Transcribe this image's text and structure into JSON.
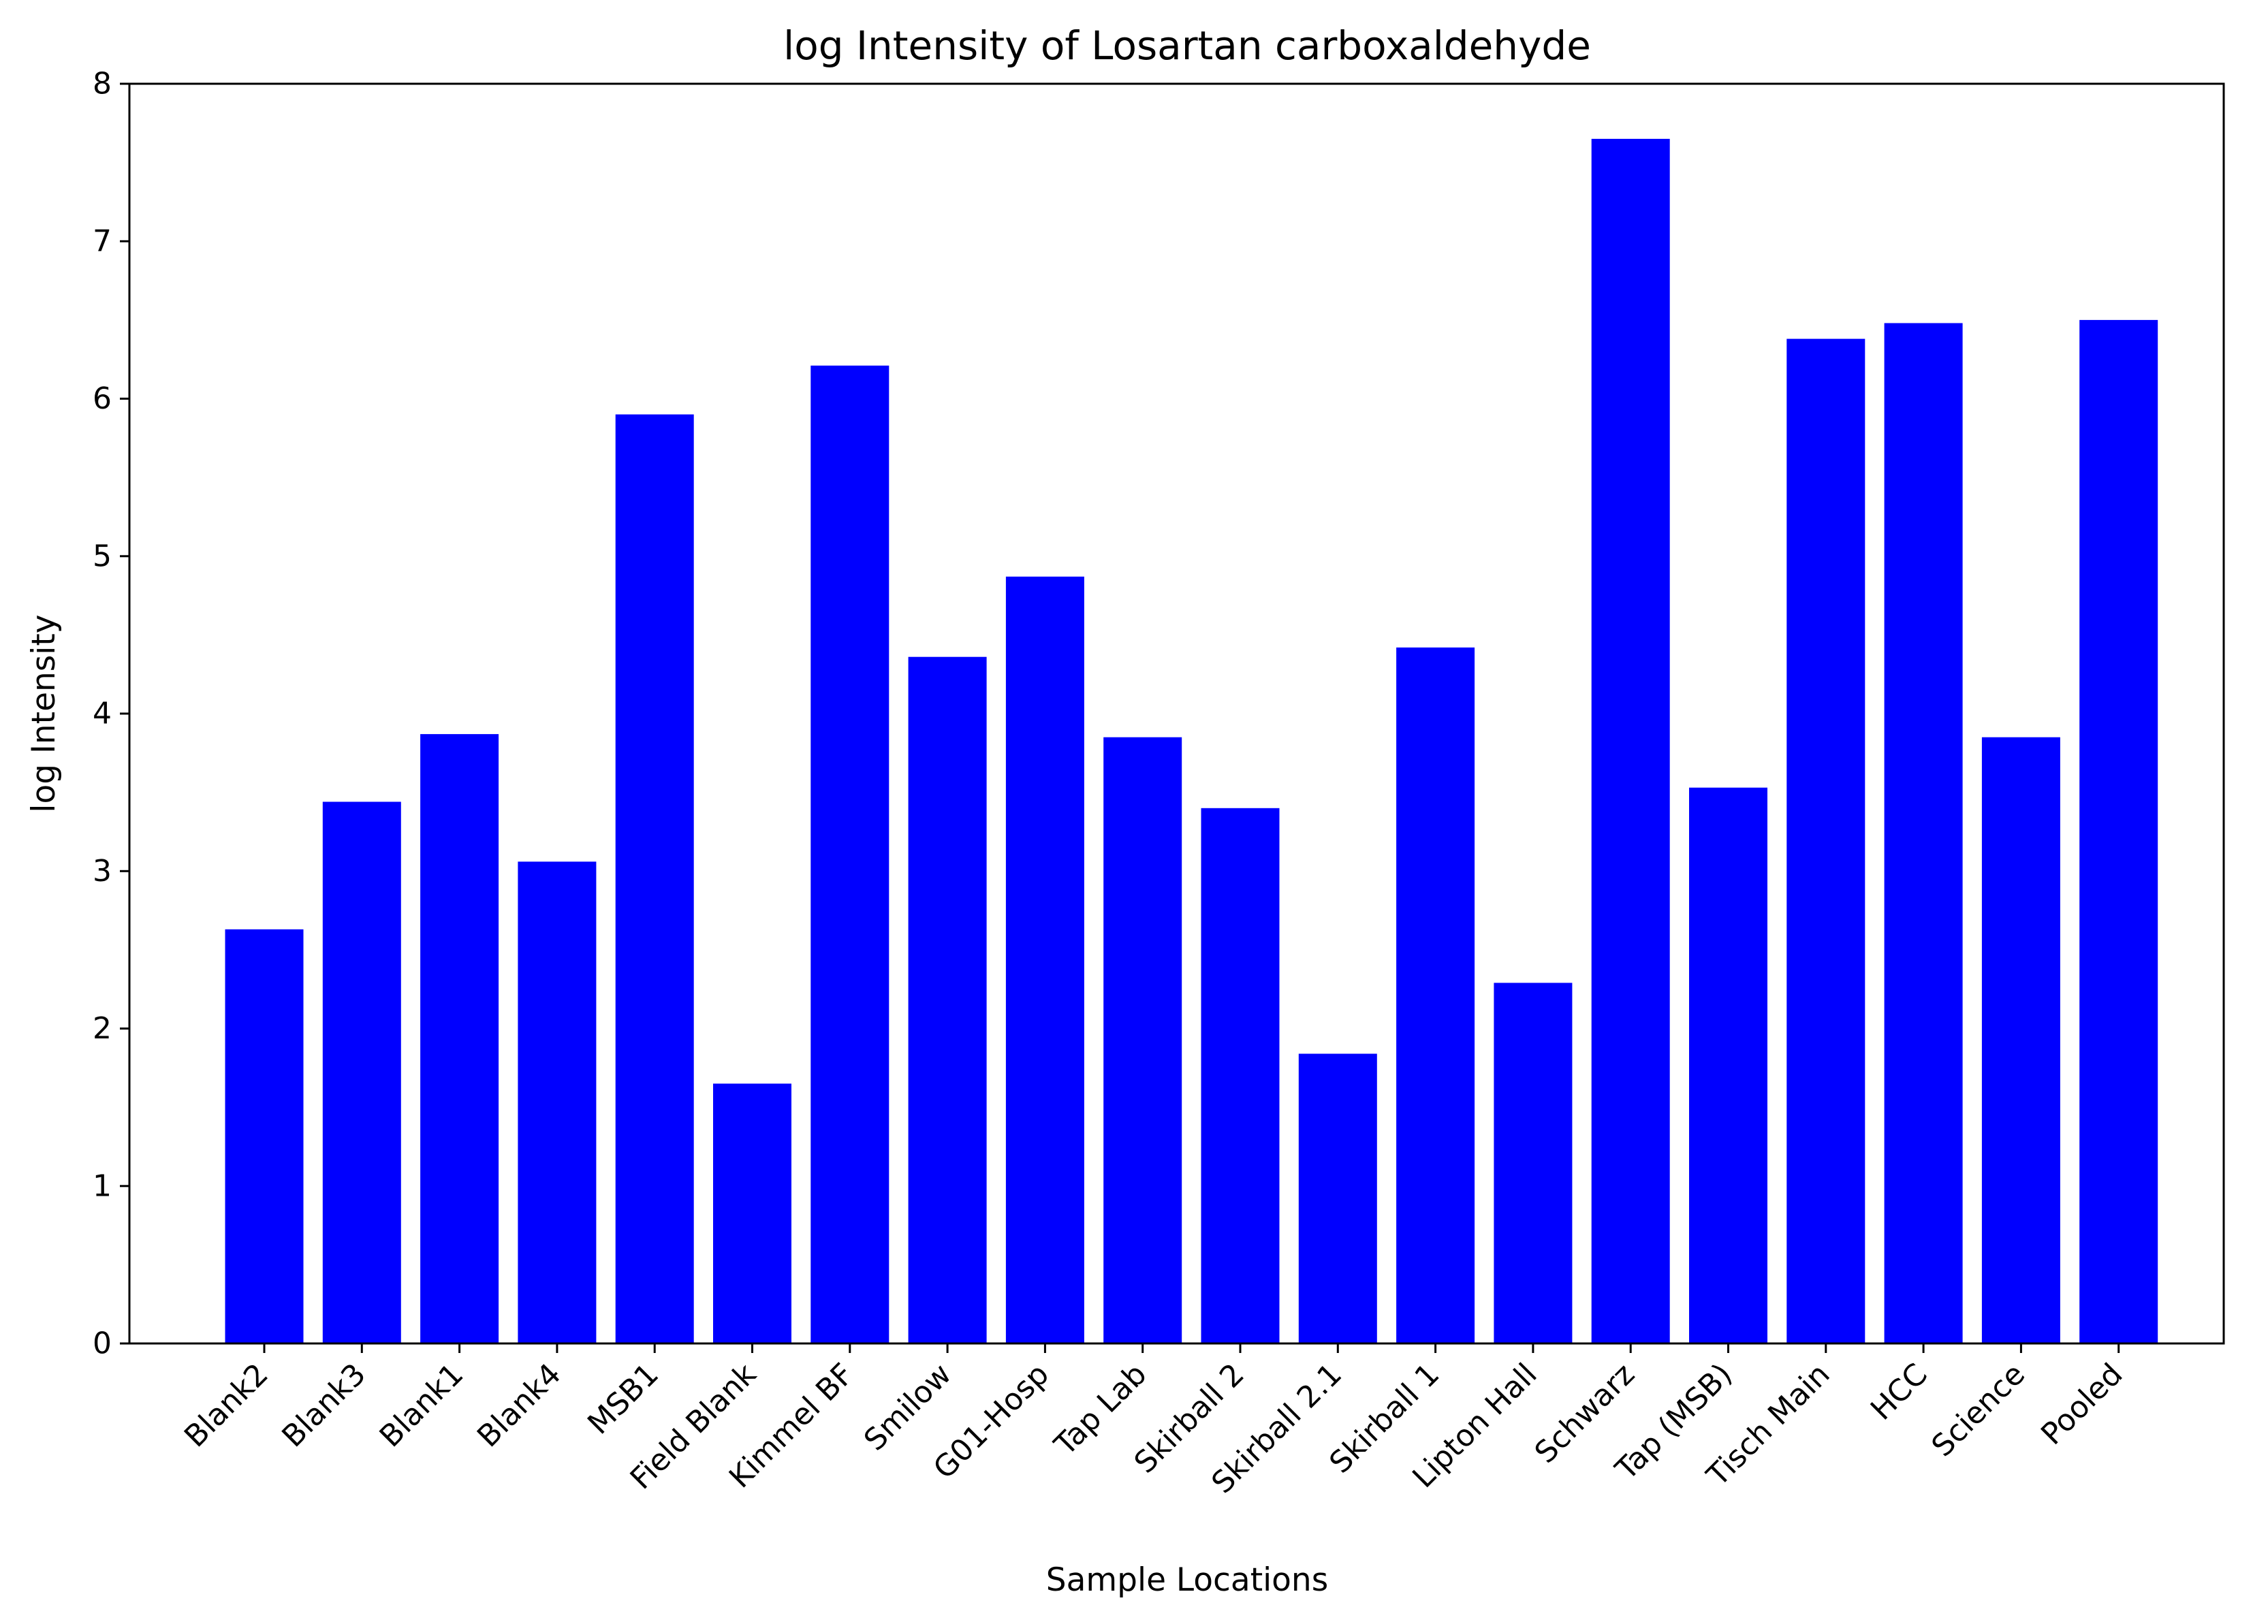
{
  "chart_data": {
    "type": "bar",
    "title": "log Intensity of Losartan carboxaldehyde",
    "xlabel": "Sample Locations",
    "ylabel": "log Intensity",
    "categories": [
      "Blank2",
      "Blank3",
      "Blank1",
      "Blank4",
      "MSB1",
      "Field Blank",
      "Kimmel BF",
      "Smilow",
      "G01-Hosp",
      "Tap Lab",
      "Skirball 2",
      "Skirball 2.1",
      "Skirball 1",
      "Lipton Hall",
      "Schwarz",
      "Tap (MSB)",
      "Tisch Main",
      "HCC",
      "Science",
      "Pooled"
    ],
    "values": [
      2.63,
      3.44,
      3.87,
      3.06,
      5.9,
      1.65,
      6.21,
      4.36,
      4.87,
      3.85,
      3.4,
      1.84,
      4.42,
      2.29,
      7.65,
      3.53,
      6.38,
      6.48,
      3.85,
      6.5
    ],
    "ylim": [
      0,
      8
    ],
    "yticks": [
      "0",
      "1",
      "2",
      "3",
      "4",
      "5",
      "6",
      "7",
      "8"
    ],
    "bar_color": "#0000ff",
    "grid": false,
    "legend": false
  }
}
